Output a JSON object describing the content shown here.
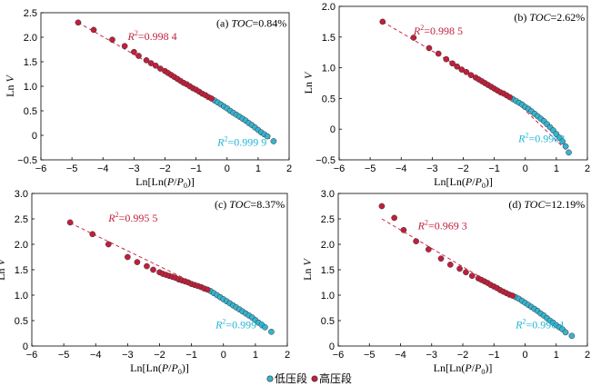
{
  "colors": {
    "low": "#37b3cf",
    "high": "#c11f3a",
    "fit": "#c8294a",
    "r2_low": "#1fb5d6",
    "r2_high": "#c11f3a",
    "axis": "#000000"
  },
  "legend": {
    "low_label": "低压段",
    "high_label": "高压段"
  },
  "chart_data": [
    {
      "type": "scatter",
      "panel_label": "(a)",
      "toc_label": "TOC",
      "toc_value": "=0.84%",
      "xlabel_pre": "Ln[Ln(",
      "xlabel_p": "P",
      "xlabel_mid": "/",
      "xlabel_p0": "P",
      "xlabel_sub": "0",
      "xlabel_post": ")]",
      "ylabel_pre": "Ln ",
      "ylabel_var": "V",
      "xlim": [
        -6,
        2
      ],
      "ylim": [
        -0.5,
        2.5
      ],
      "xticks": [
        -6,
        -5,
        -4,
        -3,
        -2,
        -1,
        0,
        1,
        2
      ],
      "xtick_labels": [
        "−6",
        "−5",
        "−4",
        "−3",
        "−2",
        "−1",
        "0",
        "1",
        "2"
      ],
      "yticks": [
        -0.5,
        0,
        0.5,
        1.0,
        1.5,
        2.0,
        2.5
      ],
      "ytick_labels": [
        "−0.5",
        "0",
        "0.5",
        "1.0",
        "1.5",
        "2.0",
        "2.5"
      ],
      "r2_high": {
        "prefix": "R",
        "sup": "2",
        "value": "=0.998 4"
      },
      "r2_low": {
        "prefix": "R",
        "sup": "2",
        "value": "=0.999 9"
      },
      "split_x": -0.4,
      "high_fit": {
        "x0": -4.8,
        "y0": 2.3,
        "x1": -0.4,
        "y1": 0.71
      },
      "low_fit": {
        "x0": -0.4,
        "y0": 0.71,
        "x1": 1.5,
        "y1": -0.12
      },
      "high_points": [
        [
          -4.8,
          2.3
        ],
        [
          -4.3,
          2.15
        ],
        [
          -3.7,
          1.95
        ],
        [
          -3.3,
          1.82
        ],
        [
          -3.0,
          1.7
        ],
        [
          -2.85,
          1.62
        ],
        [
          -2.6,
          1.53
        ],
        [
          -2.45,
          1.47
        ],
        [
          -2.3,
          1.42
        ],
        [
          -2.15,
          1.36
        ],
        [
          -2.0,
          1.31
        ],
        [
          -1.9,
          1.27
        ],
        [
          -1.8,
          1.23
        ],
        [
          -1.7,
          1.19
        ],
        [
          -1.6,
          1.15
        ],
        [
          -1.5,
          1.11
        ],
        [
          -1.4,
          1.07
        ],
        [
          -1.3,
          1.04
        ],
        [
          -1.2,
          1.0
        ],
        [
          -1.1,
          0.96
        ],
        [
          -1.0,
          0.93
        ],
        [
          -0.9,
          0.89
        ],
        [
          -0.8,
          0.85
        ],
        [
          -0.7,
          0.82
        ],
        [
          -0.6,
          0.78
        ],
        [
          -0.5,
          0.75
        ]
      ],
      "low_points": [
        [
          -0.4,
          0.71
        ],
        [
          -0.3,
          0.67
        ],
        [
          -0.2,
          0.63
        ],
        [
          -0.1,
          0.59
        ],
        [
          0.0,
          0.55
        ],
        [
          0.1,
          0.5
        ],
        [
          0.2,
          0.46
        ],
        [
          0.3,
          0.42
        ],
        [
          0.4,
          0.38
        ],
        [
          0.5,
          0.34
        ],
        [
          0.6,
          0.3
        ],
        [
          0.7,
          0.25
        ],
        [
          0.8,
          0.21
        ],
        [
          0.9,
          0.16
        ],
        [
          1.0,
          0.11
        ],
        [
          1.1,
          0.06
        ],
        [
          1.2,
          0.02
        ],
        [
          1.3,
          -0.02
        ],
        [
          1.5,
          -0.12
        ]
      ]
    },
    {
      "type": "scatter",
      "panel_label": "(b)",
      "toc_label": "TOC",
      "toc_value": "=2.62%",
      "xlabel_pre": "Ln[Ln(",
      "xlabel_p": "P",
      "xlabel_mid": "/",
      "xlabel_p0": "P",
      "xlabel_sub": "0",
      "xlabel_post": ")]",
      "ylabel_pre": "Ln ",
      "ylabel_var": "V",
      "xlim": [
        -6,
        2
      ],
      "ylim": [
        -0.5,
        2.0
      ],
      "xticks": [
        -6,
        -5,
        -4,
        -3,
        -2,
        -1,
        0,
        1,
        2
      ],
      "xtick_labels": [
        "−6",
        "−5",
        "−4",
        "−3",
        "−2",
        "−1",
        "0",
        "1",
        "2"
      ],
      "yticks": [
        -0.5,
        0,
        0.5,
        1.0,
        1.5,
        2.0
      ],
      "ytick_labels": [
        "−0.5",
        "0",
        "0.5",
        "1.0",
        "1.5",
        "2.0"
      ],
      "r2_high": {
        "prefix": "R",
        "sup": "2",
        "value": "=0.998 5"
      },
      "r2_low": {
        "prefix": "R",
        "sup": "2",
        "value": "=0.9902"
      },
      "split_x": -0.4,
      "high_fit": {
        "x0": -4.6,
        "y0": 1.75,
        "x1": -0.4,
        "y1": 0.5
      },
      "low_fit": {
        "x0": -0.4,
        "y0": 0.5,
        "x1": 1.4,
        "y1": -0.38
      },
      "high_points": [
        [
          -4.6,
          1.75
        ],
        [
          -3.6,
          1.49
        ],
        [
          -3.1,
          1.32
        ],
        [
          -2.8,
          1.23
        ],
        [
          -2.55,
          1.14
        ],
        [
          -2.35,
          1.07
        ],
        [
          -2.2,
          1.02
        ],
        [
          -2.05,
          0.97
        ],
        [
          -1.9,
          0.93
        ],
        [
          -1.75,
          0.88
        ],
        [
          -1.6,
          0.84
        ],
        [
          -1.5,
          0.81
        ],
        [
          -1.4,
          0.78
        ],
        [
          -1.3,
          0.75
        ],
        [
          -1.2,
          0.72
        ],
        [
          -1.1,
          0.69
        ],
        [
          -1.0,
          0.66
        ],
        [
          -0.9,
          0.63
        ],
        [
          -0.8,
          0.6
        ],
        [
          -0.7,
          0.58
        ],
        [
          -0.6,
          0.55
        ],
        [
          -0.5,
          0.52
        ]
      ],
      "low_points": [
        [
          -0.4,
          0.49
        ],
        [
          -0.3,
          0.46
        ],
        [
          -0.2,
          0.43
        ],
        [
          -0.1,
          0.4
        ],
        [
          0.0,
          0.36
        ],
        [
          0.1,
          0.33
        ],
        [
          0.2,
          0.29
        ],
        [
          0.3,
          0.25
        ],
        [
          0.4,
          0.21
        ],
        [
          0.5,
          0.17
        ],
        [
          0.6,
          0.13
        ],
        [
          0.7,
          0.08
        ],
        [
          0.8,
          0.03
        ],
        [
          0.9,
          -0.02
        ],
        [
          1.0,
          -0.08
        ],
        [
          1.1,
          -0.14
        ],
        [
          1.2,
          -0.2
        ],
        [
          1.3,
          -0.28
        ],
        [
          1.4,
          -0.38
        ]
      ]
    },
    {
      "type": "scatter",
      "panel_label": "(c)",
      "toc_label": "TOC",
      "toc_value": "=8.37%",
      "xlabel_pre": "Ln[Ln(",
      "xlabel_p": "P",
      "xlabel_mid": "/",
      "xlabel_p0": "P",
      "xlabel_sub": "0",
      "xlabel_post": ")]",
      "ylabel_pre": "Ln ",
      "ylabel_var": "V",
      "xlim": [
        -6,
        2
      ],
      "ylim": [
        0,
        3.0
      ],
      "xticks": [
        -6,
        -5,
        -4,
        -3,
        -2,
        -1,
        0,
        1,
        2
      ],
      "xtick_labels": [
        "−6",
        "−5",
        "−4",
        "−3",
        "−2",
        "−1",
        "0",
        "1",
        "2"
      ],
      "yticks": [
        0,
        0.5,
        1.0,
        1.5,
        2.0,
        2.5,
        3.0
      ],
      "ytick_labels": [
        "0",
        "0.5",
        "1.0",
        "1.5",
        "2.0",
        "2.5",
        "3.0"
      ],
      "r2_high": {
        "prefix": "R",
        "sup": "2",
        "value": "=0.995 5"
      },
      "r2_low": {
        "prefix": "R",
        "sup": "2",
        "value": "=0.999 3"
      },
      "split_x": -0.4,
      "high_fit": {
        "x0": -4.8,
        "y0": 2.42,
        "x1": -0.4,
        "y1": 1.08
      },
      "low_fit": {
        "x0": -0.4,
        "y0": 1.08,
        "x1": 1.5,
        "y1": 0.28
      },
      "high_points": [
        [
          -4.8,
          2.43
        ],
        [
          -4.1,
          2.2
        ],
        [
          -3.6,
          2.0
        ],
        [
          -3.0,
          1.75
        ],
        [
          -2.7,
          1.65
        ],
        [
          -2.4,
          1.57
        ],
        [
          -2.2,
          1.5
        ],
        [
          -2.0,
          1.45
        ],
        [
          -1.9,
          1.42
        ],
        [
          -1.8,
          1.4
        ],
        [
          -1.7,
          1.38
        ],
        [
          -1.6,
          1.36
        ],
        [
          -1.5,
          1.34
        ],
        [
          -1.4,
          1.31
        ],
        [
          -1.3,
          1.29
        ],
        [
          -1.2,
          1.27
        ],
        [
          -1.1,
          1.25
        ],
        [
          -1.0,
          1.22
        ],
        [
          -0.9,
          1.2
        ],
        [
          -0.8,
          1.18
        ],
        [
          -0.7,
          1.16
        ],
        [
          -0.6,
          1.13
        ],
        [
          -0.5,
          1.11
        ]
      ],
      "low_points": [
        [
          -0.4,
          1.08
        ],
        [
          -0.3,
          1.04
        ],
        [
          -0.2,
          1.0
        ],
        [
          -0.1,
          0.96
        ],
        [
          0.0,
          0.92
        ],
        [
          0.1,
          0.88
        ],
        [
          0.2,
          0.84
        ],
        [
          0.3,
          0.8
        ],
        [
          0.4,
          0.76
        ],
        [
          0.5,
          0.72
        ],
        [
          0.6,
          0.68
        ],
        [
          0.7,
          0.64
        ],
        [
          0.8,
          0.6
        ],
        [
          0.9,
          0.56
        ],
        [
          1.0,
          0.51
        ],
        [
          1.1,
          0.46
        ],
        [
          1.2,
          0.42
        ],
        [
          1.3,
          0.37
        ],
        [
          1.5,
          0.28
        ]
      ]
    },
    {
      "type": "scatter",
      "panel_label": "(d)",
      "toc_label": "TOC",
      "toc_value": "=12.19%",
      "xlabel_pre": "Ln[Ln(",
      "xlabel_p": "P",
      "xlabel_mid": "/",
      "xlabel_p0": "P",
      "xlabel_sub": "0",
      "xlabel_post": ")]",
      "ylabel_pre": "Ln ",
      "ylabel_var": "V",
      "xlim": [
        -6,
        2
      ],
      "ylim": [
        0,
        3.0
      ],
      "xticks": [
        -6,
        -5,
        -4,
        -3,
        -2,
        -1,
        0,
        1,
        2
      ],
      "xtick_labels": [
        "−6",
        "−5",
        "−4",
        "−3",
        "−2",
        "−1",
        "0",
        "1",
        "2"
      ],
      "yticks": [
        0,
        0.5,
        1.0,
        1.5,
        2.0,
        2.5,
        3.0
      ],
      "ytick_labels": [
        "0",
        "0.5",
        "1.0",
        "1.5",
        "2.0",
        "2.5",
        "3.0"
      ],
      "r2_high": {
        "prefix": "R",
        "sup": "2",
        "value": "=0.969 3"
      },
      "r2_low": {
        "prefix": "R",
        "sup": "2",
        "value": "=0.996 1"
      },
      "split_x": -0.4,
      "high_fit": {
        "x0": -4.6,
        "y0": 2.5,
        "x1": -0.4,
        "y1": 0.98
      },
      "low_fit": {
        "x0": -0.4,
        "y0": 0.98,
        "x1": 1.5,
        "y1": 0.2
      },
      "high_points": [
        [
          -4.6,
          2.75
        ],
        [
          -4.2,
          2.52
        ],
        [
          -3.9,
          2.28
        ],
        [
          -3.5,
          2.06
        ],
        [
          -3.1,
          1.9
        ],
        [
          -2.7,
          1.72
        ],
        [
          -2.4,
          1.6
        ],
        [
          -2.1,
          1.52
        ],
        [
          -1.9,
          1.45
        ],
        [
          -1.7,
          1.38
        ],
        [
          -1.5,
          1.33
        ],
        [
          -1.4,
          1.3
        ],
        [
          -1.3,
          1.27
        ],
        [
          -1.2,
          1.24
        ],
        [
          -1.1,
          1.2
        ],
        [
          -1.0,
          1.17
        ],
        [
          -0.9,
          1.14
        ],
        [
          -0.8,
          1.1
        ],
        [
          -0.7,
          1.07
        ],
        [
          -0.6,
          1.04
        ],
        [
          -0.5,
          1.01
        ],
        [
          -0.4,
          0.99
        ]
      ],
      "low_points": [
        [
          -0.3,
          0.96
        ],
        [
          -0.2,
          0.93
        ],
        [
          -0.1,
          0.89
        ],
        [
          0.0,
          0.85
        ],
        [
          0.1,
          0.81
        ],
        [
          0.2,
          0.77
        ],
        [
          0.3,
          0.73
        ],
        [
          0.4,
          0.69
        ],
        [
          0.5,
          0.64
        ],
        [
          0.6,
          0.6
        ],
        [
          0.7,
          0.55
        ],
        [
          0.8,
          0.5
        ],
        [
          0.9,
          0.46
        ],
        [
          1.0,
          0.41
        ],
        [
          1.1,
          0.37
        ],
        [
          1.2,
          0.33
        ],
        [
          1.3,
          0.27
        ],
        [
          1.5,
          0.2
        ]
      ]
    }
  ]
}
